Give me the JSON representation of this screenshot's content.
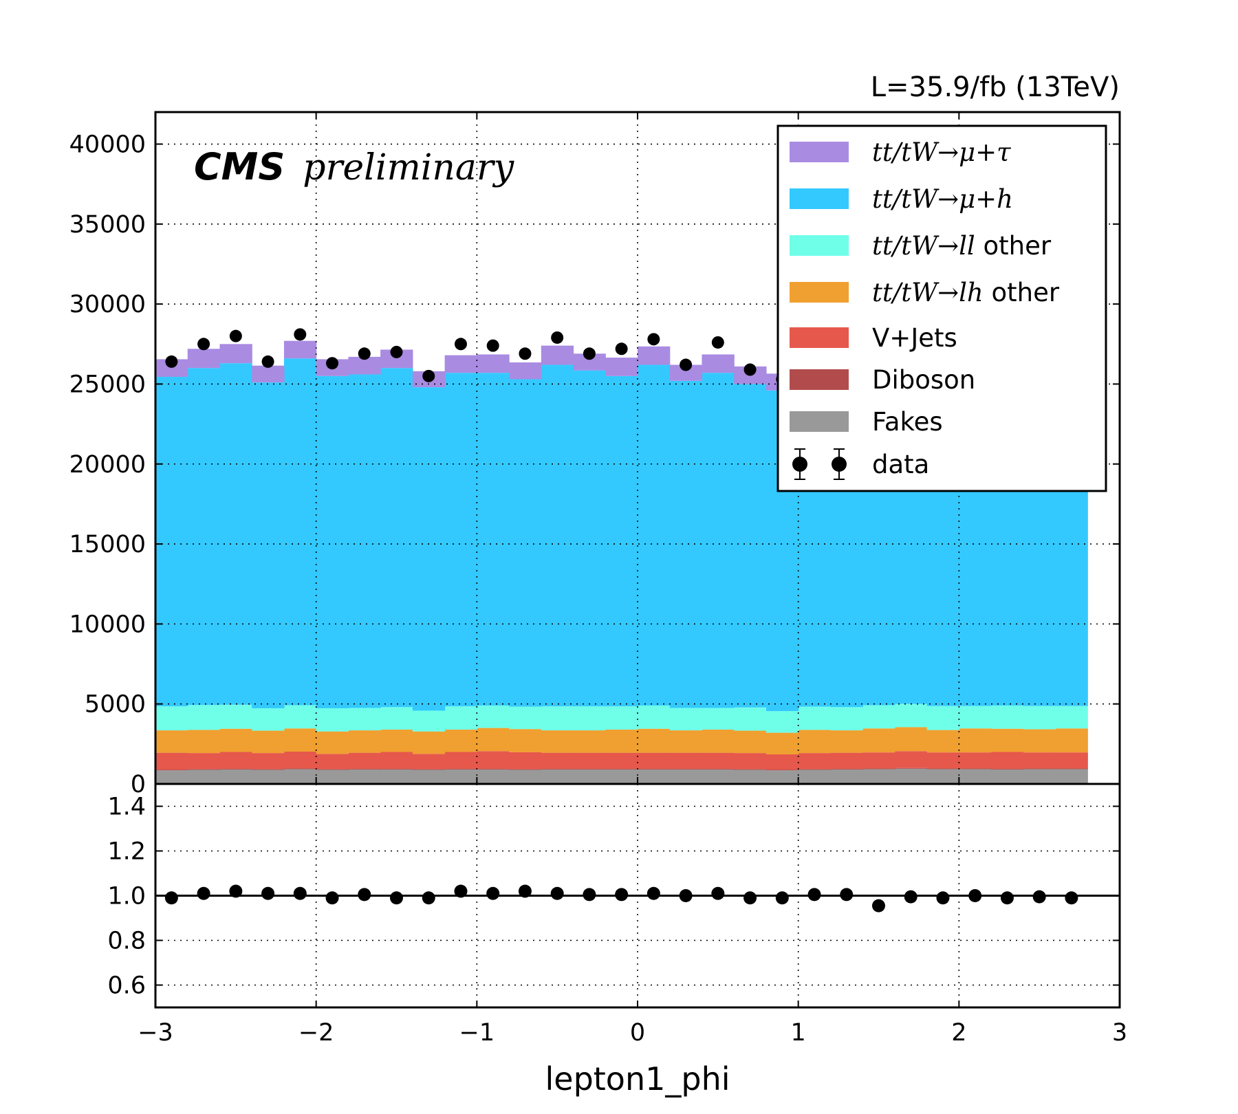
{
  "lumi_label": "L=35.9/fb (13TeV)",
  "cms_label": "CMS",
  "preliminary_label": "preliminary",
  "chart_data": [
    {
      "type": "bar",
      "stacked": true,
      "xlabel": "",
      "ylabel": "",
      "xlim": [
        -3,
        3
      ],
      "ylim": [
        0,
        42000
      ],
      "y_ticks": [
        "0",
        "5000",
        "10000",
        "15000",
        "20000",
        "25000",
        "30000",
        "35000",
        "40000"
      ],
      "grid": true,
      "legend_position": "top-right",
      "bin_edges": [
        -3.0,
        -2.8,
        -2.6,
        -2.4,
        -2.2,
        -2.0,
        -1.8,
        -1.6,
        -1.4,
        -1.2,
        -1.0,
        -0.8,
        -0.6,
        -0.4,
        -0.2,
        0.0,
        0.2,
        0.4,
        0.6,
        0.8,
        1.0,
        1.2,
        1.4,
        1.6,
        1.8,
        2.0,
        2.2,
        2.4,
        2.6,
        2.8
      ],
      "series": [
        {
          "name": "Fakes",
          "color": "#999999",
          "values": [
            850,
            880,
            900,
            880,
            920,
            880,
            900,
            900,
            880,
            900,
            900,
            880,
            900,
            900,
            900,
            900,
            900,
            900,
            880,
            850,
            880,
            900,
            920,
            950,
            920,
            920,
            900,
            920,
            920
          ]
        },
        {
          "name": "Diboson",
          "color": "#b24c4c",
          "values": [
            50,
            50,
            50,
            50,
            50,
            50,
            50,
            50,
            50,
            50,
            50,
            50,
            50,
            50,
            50,
            50,
            50,
            50,
            50,
            50,
            50,
            50,
            50,
            50,
            50,
            50,
            50,
            50,
            50
          ]
        },
        {
          "name": "V+Jets",
          "color": "#e6584b",
          "values": [
            1050,
            1000,
            1050,
            1000,
            1050,
            950,
            1000,
            1050,
            950,
            1050,
            1100,
            1050,
            1000,
            1000,
            1000,
            1000,
            1000,
            1000,
            1000,
            950,
            1000,
            1000,
            1000,
            1050,
            1000,
            1000,
            1050,
            1000,
            1000
          ]
        },
        {
          "name": "tt/tW → lh other",
          "color": "#f0a030",
          "values": [
            1400,
            1450,
            1450,
            1400,
            1450,
            1400,
            1400,
            1400,
            1400,
            1400,
            1450,
            1450,
            1400,
            1400,
            1450,
            1500,
            1400,
            1450,
            1400,
            1350,
            1450,
            1400,
            1500,
            1500,
            1400,
            1500,
            1450,
            1450,
            1500
          ]
        },
        {
          "name": "tt/tW → ll other",
          "color": "#6fffe9",
          "values": [
            1500,
            1550,
            1500,
            1400,
            1450,
            1450,
            1400,
            1400,
            1300,
            1450,
            1400,
            1400,
            1500,
            1500,
            1450,
            1450,
            1400,
            1350,
            1450,
            1350,
            1450,
            1450,
            1450,
            1450,
            1500,
            1400,
            1450,
            1450,
            1400
          ]
        },
        {
          "name": "tt/tW → μ + h",
          "color": "#33c9ff",
          "values": [
            20600,
            21070,
            21350,
            20370,
            21680,
            20770,
            20850,
            21200,
            20220,
            20850,
            20800,
            20470,
            21350,
            21000,
            20650,
            21300,
            20450,
            20950,
            20220,
            20050,
            20550,
            20300,
            19980,
            20300,
            19850,
            19600,
            19500,
            19300,
            19500
          ]
        },
        {
          "name": "tt/tW → μ + τ",
          "color": "#a98be2",
          "values": [
            1100,
            1200,
            1200,
            1050,
            1100,
            1050,
            1100,
            1150,
            1000,
            1100,
            1150,
            1050,
            1200,
            1050,
            1150,
            1150,
            1000,
            1150,
            1100,
            1050,
            1100,
            1100,
            1050,
            1100,
            1050,
            1050,
            1050,
            1050,
            1050
          ]
        }
      ],
      "data_series": {
        "name": "data",
        "x": [
          -2.9,
          -2.7,
          -2.5,
          -2.3,
          -2.1,
          -1.9,
          -1.7,
          -1.5,
          -1.3,
          -1.1,
          -0.9,
          -0.7,
          -0.5,
          -0.3,
          -0.1,
          0.1,
          0.3,
          0.5,
          0.7,
          0.9,
          1.1,
          1.3,
          1.5,
          1.7,
          1.9,
          2.1,
          2.3,
          2.5,
          2.7
        ],
        "y": [
          26400,
          27500,
          28000,
          26400,
          28100,
          26300,
          26900,
          27000,
          25500,
          27500,
          27400,
          26900,
          27900,
          26900,
          27200,
          27800,
          26200,
          27600,
          25900,
          25300,
          26700,
          26700,
          25500,
          26800,
          26000,
          26700,
          26500,
          26400,
          26500
        ]
      }
    },
    {
      "type": "scatter",
      "xlabel": "lepton1_phi",
      "ylabel": "",
      "xlim": [
        -3,
        3
      ],
      "ylim": [
        0.5,
        1.5
      ],
      "y_ticks": [
        "0.6",
        "0.8",
        "1.0",
        "1.2",
        "1.4"
      ],
      "x_ticks": [
        "−3",
        "−2",
        "−1",
        "0",
        "1",
        "2",
        "3"
      ],
      "reference_line": 1.0,
      "grid": true,
      "x": [
        -2.9,
        -2.7,
        -2.5,
        -2.3,
        -2.1,
        -1.9,
        -1.7,
        -1.5,
        -1.3,
        -1.1,
        -0.9,
        -0.7,
        -0.5,
        -0.3,
        -0.1,
        0.1,
        0.3,
        0.5,
        0.7,
        0.9,
        1.1,
        1.3,
        1.5,
        1.7,
        1.9,
        2.1,
        2.3,
        2.5,
        2.7
      ],
      "y": [
        0.99,
        1.01,
        1.02,
        1.01,
        1.01,
        0.99,
        1.005,
        0.99,
        0.99,
        1.02,
        1.01,
        1.02,
        1.01,
        1.005,
        1.005,
        1.01,
        1.0,
        1.01,
        0.99,
        0.99,
        1.005,
        1.005,
        0.955,
        0.995,
        0.99,
        1.0,
        0.99,
        0.995,
        0.99
      ]
    }
  ],
  "legend": [
    {
      "math": "tt/tW→μ+τ",
      "text": "",
      "color": "#a98be2",
      "kind": "patch"
    },
    {
      "math": "tt/tW→μ+h",
      "text": "",
      "color": "#33c9ff",
      "kind": "patch"
    },
    {
      "math": "tt/tW→ll",
      "text": " other",
      "color": "#6fffe9",
      "kind": "patch"
    },
    {
      "math": "tt/tW→lh",
      "text": " other",
      "color": "#f0a030",
      "kind": "patch"
    },
    {
      "math": "",
      "text": "V+Jets",
      "color": "#e6584b",
      "kind": "patch"
    },
    {
      "math": "",
      "text": "Diboson",
      "color": "#b24c4c",
      "kind": "patch"
    },
    {
      "math": "",
      "text": "Fakes",
      "color": "#999999",
      "kind": "patch"
    },
    {
      "math": "",
      "text": "data",
      "color": "#000000",
      "kind": "marker"
    }
  ]
}
